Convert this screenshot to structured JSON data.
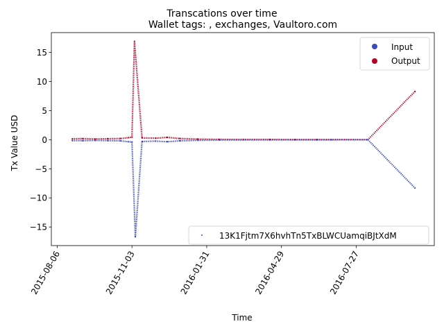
{
  "chart_data": {
    "type": "scatter",
    "suptitle": "Transcations over time",
    "title": "Wallet tags: , exchanges, Vaultoro.com",
    "xlabel": "Time",
    "ylabel": "Tx Value USD",
    "x_type": "date",
    "xlim": [
      "2015-07-30",
      "2016-10-28"
    ],
    "ylim": [
      -18.2,
      18.4
    ],
    "x_ticks": [
      "2015-08-06",
      "2015-11-03",
      "2016-01-31",
      "2016-04-29",
      "2016-07-27"
    ],
    "y_ticks": [
      -15,
      -10,
      -5,
      0,
      5,
      10,
      15
    ],
    "y_tick_labels": [
      "−15",
      "−10",
      "−5",
      "0",
      "5",
      "10",
      "15"
    ],
    "grid": false,
    "legend_position": "top-right",
    "legend": [
      {
        "label": "Input",
        "color": "#3a4cc0"
      },
      {
        "label": "Output",
        "color": "#b40426"
      }
    ],
    "address_legend": {
      "label": "13K1Fjtm7X6hvhTn5TxBLWCUamqiBJtXdM",
      "color": "#3a4cc0",
      "position": "lower-right"
    },
    "series": [
      {
        "name": "Output",
        "color": "#b40426",
        "points": [
          [
            "2015-08-24",
            0.15
          ],
          [
            "2015-09-05",
            0.18
          ],
          [
            "2015-09-20",
            0.12
          ],
          [
            "2015-10-05",
            0.16
          ],
          [
            "2015-10-20",
            0.2
          ],
          [
            "2015-10-30",
            0.35
          ],
          [
            "2015-11-03",
            0.45
          ],
          [
            "2015-11-06",
            16.9
          ],
          [
            "2015-11-15",
            0.3
          ],
          [
            "2015-12-01",
            0.25
          ],
          [
            "2015-12-15",
            0.4
          ],
          [
            "2015-12-30",
            0.2
          ],
          [
            "2016-01-20",
            0.1
          ],
          [
            "2016-02-15",
            0.05
          ],
          [
            "2016-03-15",
            0.04
          ],
          [
            "2016-04-15",
            0.04
          ],
          [
            "2016-05-15",
            0.03
          ],
          [
            "2016-06-10",
            0.03
          ],
          [
            "2016-06-28",
            0.03
          ],
          [
            "2016-08-10",
            0.02
          ],
          [
            "2016-10-05",
            8.3
          ]
        ]
      },
      {
        "name": "Input",
        "color": "#3a4cc0",
        "points": [
          [
            "2015-08-24",
            -0.15
          ],
          [
            "2015-09-05",
            -0.18
          ],
          [
            "2015-09-20",
            -0.12
          ],
          [
            "2015-10-05",
            -0.16
          ],
          [
            "2015-10-20",
            -0.2
          ],
          [
            "2015-10-30",
            -0.35
          ],
          [
            "2015-11-03",
            -0.4
          ],
          [
            "2015-11-07",
            -16.7
          ],
          [
            "2015-11-15",
            -0.3
          ],
          [
            "2015-12-01",
            -0.25
          ],
          [
            "2015-12-15",
            -0.35
          ],
          [
            "2015-12-30",
            -0.2
          ],
          [
            "2016-01-20",
            -0.1
          ],
          [
            "2016-02-15",
            -0.05
          ],
          [
            "2016-03-15",
            -0.04
          ],
          [
            "2016-04-15",
            -0.04
          ],
          [
            "2016-05-15",
            -0.03
          ],
          [
            "2016-06-10",
            -0.03
          ],
          [
            "2016-06-28",
            -0.03
          ],
          [
            "2016-08-10",
            -0.02
          ],
          [
            "2016-10-05",
            -8.3
          ]
        ]
      }
    ]
  }
}
